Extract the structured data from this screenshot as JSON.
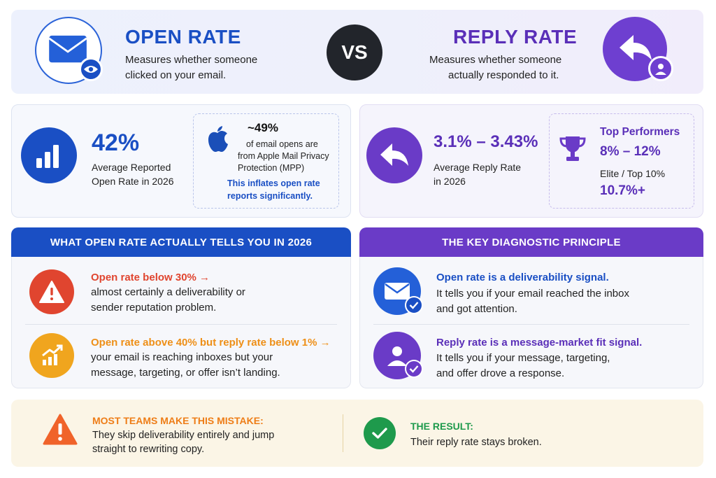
{
  "header": {
    "open_rate": {
      "title": "OPEN RATE",
      "desc_1": "Measures whether someone",
      "desc_2": "clicked on your email.",
      "icon": "envelope-eye-icon"
    },
    "vs_label": "VS",
    "reply_rate": {
      "title": "REPLY RATE",
      "desc_1": "Measures whether someone",
      "desc_2": "actually responded to it.",
      "icon": "reply-user-icon"
    }
  },
  "open_stats": {
    "value": "42%",
    "label_1": "Average Reported",
    "label_2": "Open Rate in 2026",
    "apple_box": {
      "value": "~49%",
      "text_1": "of email opens are",
      "text_2": "from Apple Mail Privacy",
      "text_3": "Protection (MPP)",
      "note_1": "This inflates open rate",
      "note_2": "reports significantly."
    }
  },
  "reply_stats": {
    "value": "3.1% – 3.43%",
    "label_1": "Average Reply Rate",
    "label_2": "in 2026",
    "top_box": {
      "title": "Top Performers",
      "range": "8% – 12%",
      "elite_label": "Elite / Top 10%",
      "elite_value": "10.7%+"
    }
  },
  "open_section": {
    "header": "WHAT OPEN RATE ACTUALLY TELLS YOU IN 2026",
    "items": [
      {
        "title": "Open rate below 30% →",
        "line_1": "almost certainly a deliverability or",
        "line_2": "sender reputation problem."
      },
      {
        "title": "Open rate above 40% but reply rate below 1% →",
        "line_1": "your email is reaching inboxes but your",
        "line_2": "message, targeting, or offer isn’t landing."
      }
    ]
  },
  "diag_section": {
    "header": "THE KEY DIAGNOSTIC PRINCIPLE",
    "items": [
      {
        "title": "Open rate is a deliverability signal.",
        "line_1": "It tells you if your email reached the inbox",
        "line_2": "and got attention."
      },
      {
        "title": "Reply rate is a message-market fit signal.",
        "line_1": "It tells you if your message, targeting,",
        "line_2": "and offer drove a response."
      }
    ]
  },
  "banner": {
    "mistake_title": "MOST TEAMS MAKE THIS MISTAKE:",
    "mistake_1": "They skip deliverability entirely and jump",
    "mistake_2": "straight to rewriting copy.",
    "result_title": "THE RESULT:",
    "result_text": "Their reply rate stays broken."
  },
  "colors": {
    "blue": "#1a4fc4",
    "purple": "#6a3bc7",
    "red": "#e0452f",
    "orange": "#f09a1c",
    "green": "#1e9a4c"
  }
}
